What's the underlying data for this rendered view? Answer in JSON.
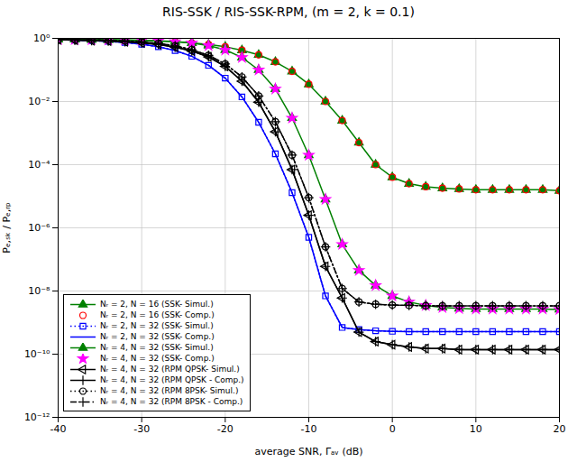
{
  "chart_data": {
    "type": "line",
    "title": "RIS-SSK / RIS-SSK-RPM, (m = 2, k = 0.1)",
    "xlabel": "average SNR, Γₐᵥ (dB)",
    "ylabel": "Pₑ,ₛₖ / Pₑ,ᵣₚ",
    "log": "y",
    "grid": true,
    "legend": "lower left",
    "xlim": [
      -40,
      20
    ],
    "xticks": [
      -40,
      -30,
      -20,
      -10,
      0,
      10,
      20
    ],
    "ylim": [
      1e-12,
      1
    ],
    "yticks": [
      {
        "value": 1e-12,
        "label": "10⁻¹²"
      },
      {
        "value": 1e-10,
        "label": "10⁻¹⁰"
      },
      {
        "value": 1e-08,
        "label": "10⁻⁸"
      },
      {
        "value": 1e-06,
        "label": "10⁻⁶"
      },
      {
        "value": 0.0001,
        "label": "10⁻⁴"
      },
      {
        "value": 0.01,
        "label": "10⁻²"
      },
      {
        "value": 1,
        "label": "10⁰"
      }
    ],
    "x": [
      -40,
      -38,
      -36,
      -34,
      -32,
      -30,
      -28,
      -26,
      -24,
      -22,
      -20,
      -18,
      -16,
      -14,
      -12,
      -10,
      -8,
      -6,
      -4,
      -2,
      0,
      2,
      4,
      6,
      8,
      10,
      12,
      14,
      16,
      18,
      20
    ],
    "series": [
      {
        "name": "Nᵣ = 2, N = 16 (SSK- Simul.)",
        "color": "green",
        "line_style": "solid",
        "marker": "triangle-up",
        "values": [
          0.93,
          0.92,
          0.91,
          0.9,
          0.88,
          0.85,
          0.82,
          0.78,
          0.72,
          0.64,
          0.54,
          0.42,
          0.3,
          0.18,
          0.09,
          0.035,
          0.01,
          0.0025,
          0.0005,
          0.0001,
          4e-05,
          2.5e-05,
          2e-05,
          1.8e-05,
          1.7e-05,
          1.6e-05,
          1.6e-05,
          1.6e-05,
          1.6e-05,
          1.6e-05,
          1.5e-05
        ]
      },
      {
        "name": "Nᵣ = 2, N = 16 (SSK- Comp.)",
        "color": "red",
        "line_style": "none",
        "marker": "circle-open",
        "values": [
          0.93,
          0.92,
          0.91,
          0.9,
          0.88,
          0.85,
          0.82,
          0.78,
          0.72,
          0.64,
          0.54,
          0.42,
          0.3,
          0.18,
          0.09,
          0.035,
          0.01,
          0.0025,
          0.0005,
          0.0001,
          4e-05,
          2.5e-05,
          2e-05,
          1.8e-05,
          1.7e-05,
          1.6e-05,
          1.6e-05,
          1.6e-05,
          1.6e-05,
          1.6e-05,
          1.5e-05
        ]
      },
      {
        "name": "Nᵣ = 2, N = 32 (SSK- Simul.)",
        "color": "blue",
        "line_style": "dotted",
        "marker": "square-open",
        "values": [
          0.9,
          0.88,
          0.85,
          0.8,
          0.74,
          0.65,
          0.54,
          0.41,
          0.27,
          0.14,
          0.055,
          0.014,
          0.0022,
          0.00022,
          1.3e-05,
          5e-07,
          7e-09,
          7e-10,
          6e-10,
          5.5e-10,
          5.3e-10,
          5.2e-10,
          5.2e-10,
          5.2e-10,
          5.2e-10,
          5.2e-10,
          5.2e-10,
          5.2e-10,
          5.2e-10,
          5.2e-10,
          5.2e-10
        ]
      },
      {
        "name": "Nᵣ = 2, N = 32 (SSK- Comp.)",
        "color": "blue",
        "line_style": "solid",
        "marker": "none",
        "values": [
          0.9,
          0.88,
          0.85,
          0.8,
          0.74,
          0.65,
          0.54,
          0.41,
          0.27,
          0.14,
          0.055,
          0.014,
          0.0022,
          0.00022,
          1.3e-05,
          5e-07,
          7e-09,
          7e-10,
          6e-10,
          5.5e-10,
          5.3e-10,
          5.2e-10,
          5.2e-10,
          5.2e-10,
          5.2e-10,
          5.2e-10,
          5.2e-10,
          5.2e-10,
          5.2e-10,
          5.2e-10,
          5.2e-10
        ]
      },
      {
        "name": "Nᵣ = 4, N = 32 (SSK- Simul.)",
        "color": "green",
        "line_style": "solid",
        "marker": "triangle-up",
        "values": [
          0.93,
          0.92,
          0.91,
          0.9,
          0.89,
          0.87,
          0.84,
          0.79,
          0.71,
          0.59,
          0.43,
          0.25,
          0.1,
          0.025,
          0.003,
          0.0002,
          8e-06,
          3e-07,
          4.5e-08,
          1.5e-08,
          7e-09,
          4.5e-09,
          3.5e-09,
          3e-09,
          2.8e-09,
          2.7e-09,
          2.7e-09,
          2.7e-09,
          2.7e-09,
          2.7e-09,
          2.6e-09
        ]
      },
      {
        "name": "Nᵣ = 4, N = 32 (SSK- Comp.)",
        "color": "magenta",
        "line_style": "none",
        "marker": "star",
        "values": [
          0.93,
          0.92,
          0.91,
          0.9,
          0.89,
          0.87,
          0.84,
          0.79,
          0.71,
          0.59,
          0.43,
          0.25,
          0.1,
          0.025,
          0.003,
          0.0002,
          8e-06,
          3e-07,
          4.5e-08,
          1.5e-08,
          7e-09,
          4.5e-09,
          3.5e-09,
          3e-09,
          2.8e-09,
          2.7e-09,
          2.7e-09,
          2.7e-09,
          2.7e-09,
          2.7e-09,
          2.6e-09
        ]
      },
      {
        "name": "Nᵣ = 4, N = 32 (RPM QPSK- Simul.)",
        "color": "black",
        "line_style": "solid",
        "marker": "triangle-left-open",
        "values": [
          0.9,
          0.88,
          0.85,
          0.82,
          0.78,
          0.72,
          0.64,
          0.53,
          0.4,
          0.26,
          0.13,
          0.044,
          0.0095,
          0.0011,
          7e-05,
          2.5e-06,
          6e-08,
          6e-09,
          5e-10,
          2.5e-10,
          2e-10,
          1.7e-10,
          1.5e-10,
          1.5e-10,
          1.4e-10,
          1.4e-10,
          1.4e-10,
          1.4e-10,
          1.4e-10,
          1.4e-10,
          1.4e-10
        ]
      },
      {
        "name": "Nᵣ = 4, N = 32 (RPM QPSK - Comp.)",
        "color": "black",
        "line_style": "solid",
        "marker": "plus",
        "values": [
          0.9,
          0.88,
          0.85,
          0.82,
          0.78,
          0.72,
          0.64,
          0.53,
          0.4,
          0.26,
          0.13,
          0.044,
          0.0095,
          0.0011,
          7e-05,
          2.5e-06,
          6e-08,
          6e-09,
          5e-10,
          2.5e-10,
          2e-10,
          1.7e-10,
          1.5e-10,
          1.5e-10,
          1.4e-10,
          1.4e-10,
          1.4e-10,
          1.4e-10,
          1.4e-10,
          1.4e-10,
          1.4e-10
        ]
      },
      {
        "name": "Nᵣ = 4, N = 32 (RPM 8PSK- Simul.)",
        "color": "black",
        "line_style": "dotted",
        "marker": "circle-open",
        "values": [
          0.92,
          0.91,
          0.9,
          0.87,
          0.83,
          0.77,
          0.69,
          0.58,
          0.44,
          0.29,
          0.155,
          0.06,
          0.015,
          0.0023,
          0.0002,
          9e-06,
          2.5e-07,
          1.2e-08,
          4.5e-09,
          3.8e-09,
          3.6e-09,
          3.5e-09,
          3.4e-09,
          3.4e-09,
          3.4e-09,
          3.4e-09,
          3.4e-09,
          3.4e-09,
          3.4e-09,
          3.4e-09,
          3.4e-09
        ]
      },
      {
        "name": "Nᵣ = 4, N = 32 (RPM 8PSK - Comp.)",
        "color": "black",
        "line_style": "dashdot",
        "marker": "plus",
        "values": [
          0.92,
          0.91,
          0.9,
          0.87,
          0.83,
          0.77,
          0.69,
          0.58,
          0.44,
          0.29,
          0.155,
          0.06,
          0.015,
          0.0023,
          0.0002,
          9e-06,
          2.5e-07,
          1.2e-08,
          4.5e-09,
          3.8e-09,
          3.6e-09,
          3.5e-09,
          3.4e-09,
          3.4e-09,
          3.4e-09,
          3.4e-09,
          3.4e-09,
          3.4e-09,
          3.4e-09,
          3.4e-09,
          3.4e-09
        ]
      }
    ]
  }
}
